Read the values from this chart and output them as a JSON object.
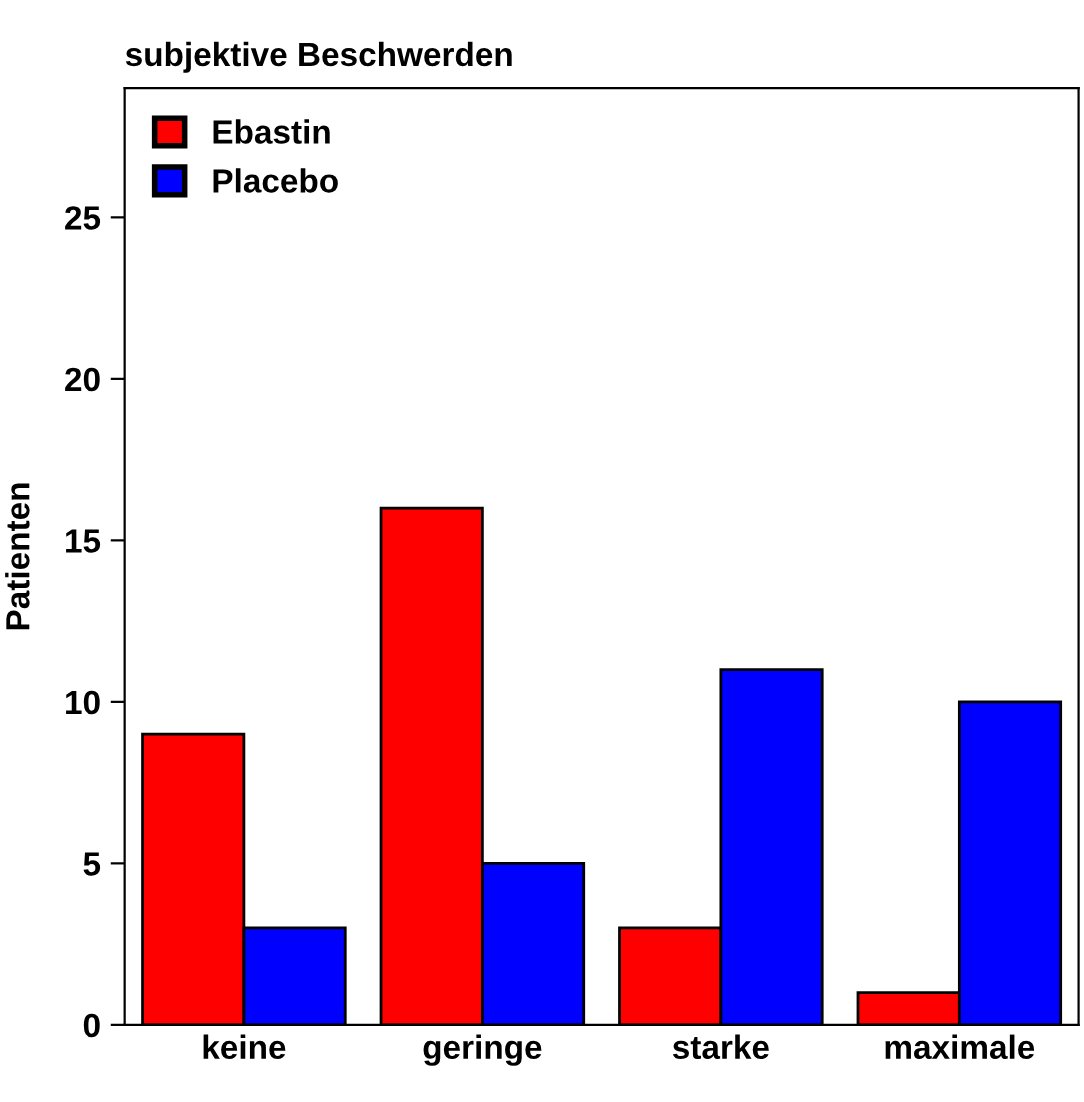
{
  "chart_data": {
    "type": "bar",
    "title": "subjektive Beschwerden",
    "ylabel": "Patienten",
    "categories": [
      "keine",
      "geringe",
      "starke",
      "maximale"
    ],
    "series": [
      {
        "name": "Ebastin",
        "color": "#ff0000",
        "values": [
          9,
          16,
          3,
          1
        ]
      },
      {
        "name": "Placebo",
        "color": "#0000ff",
        "values": [
          3,
          5,
          11,
          10
        ]
      }
    ],
    "ylim": [
      0,
      29
    ],
    "yticks": [
      0,
      5,
      10,
      15,
      20,
      25
    ],
    "grid": false,
    "legend": "top left"
  }
}
